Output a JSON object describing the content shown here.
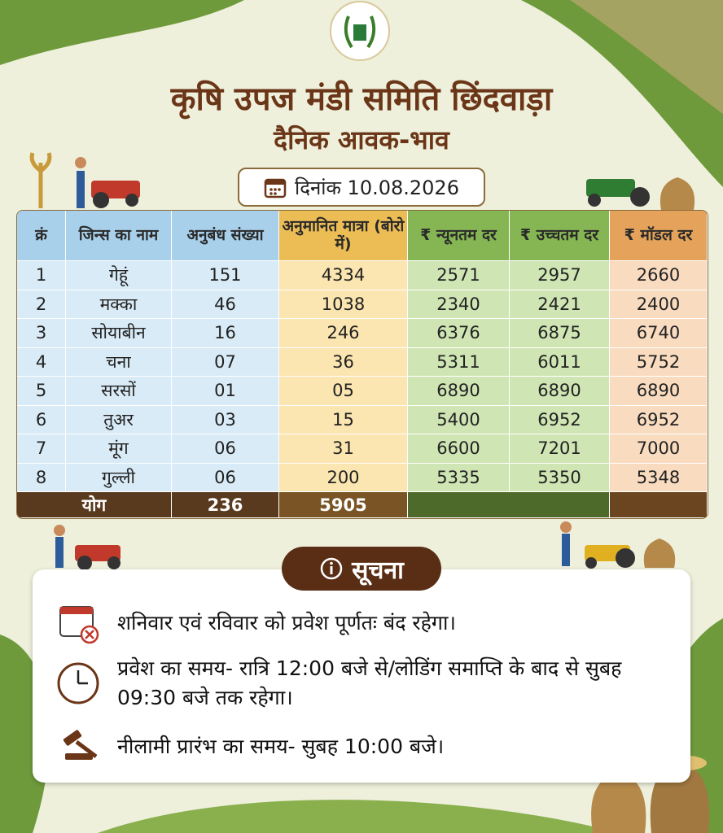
{
  "header": {
    "title": "कृषि उपज मंडी समिति छिंदवाड़ा",
    "subtitle": "दैनिक आवक-भाव",
    "date": "दिनांक 10.08.2026"
  },
  "table": {
    "columns": [
      "क्रं",
      "जिन्स का नाम",
      "अनुबंध संख्या",
      "अनुमानित मात्रा (बोरो में)",
      "₹ न्यूनतम दर",
      "₹ उच्चतम दर",
      "₹ मॉडल दर"
    ],
    "rows": [
      [
        "1",
        "गेहूं",
        "151",
        "4334",
        "2571",
        "2957",
        "2660"
      ],
      [
        "2",
        "मक्का",
        "46",
        "1038",
        "2340",
        "2421",
        "2400"
      ],
      [
        "3",
        "सोयाबीन",
        "16",
        "246",
        "6376",
        "6875",
        "6740"
      ],
      [
        "4",
        "चना",
        "07",
        "36",
        "5311",
        "6011",
        "5752"
      ],
      [
        "5",
        "सरसों",
        "01",
        "05",
        "6890",
        "6890",
        "6890"
      ],
      [
        "6",
        "तुअर",
        "03",
        "15",
        "5400",
        "6952",
        "6952"
      ],
      [
        "7",
        "मूंग",
        "06",
        "31",
        "6600",
        "7201",
        "7000"
      ],
      [
        "8",
        "गुल्ली",
        "06",
        "200",
        "5335",
        "5350",
        "5348"
      ]
    ],
    "total": {
      "label": "योग",
      "contracts": "236",
      "quantity": "5905"
    }
  },
  "notice": {
    "title": "सूचना",
    "items": [
      "शनिवार एवं रविवार को प्रवेश पूर्णतः बंद रहेगा।",
      "प्रवेश का समय- रात्रि 12:00 बजे से/लोडिंग समाप्ति के बाद से सुबह 09:30 बजे तक रहेगा।",
      "नीलामी प्रारंभ का समय- सुबह 10:00 बजे।"
    ]
  }
}
